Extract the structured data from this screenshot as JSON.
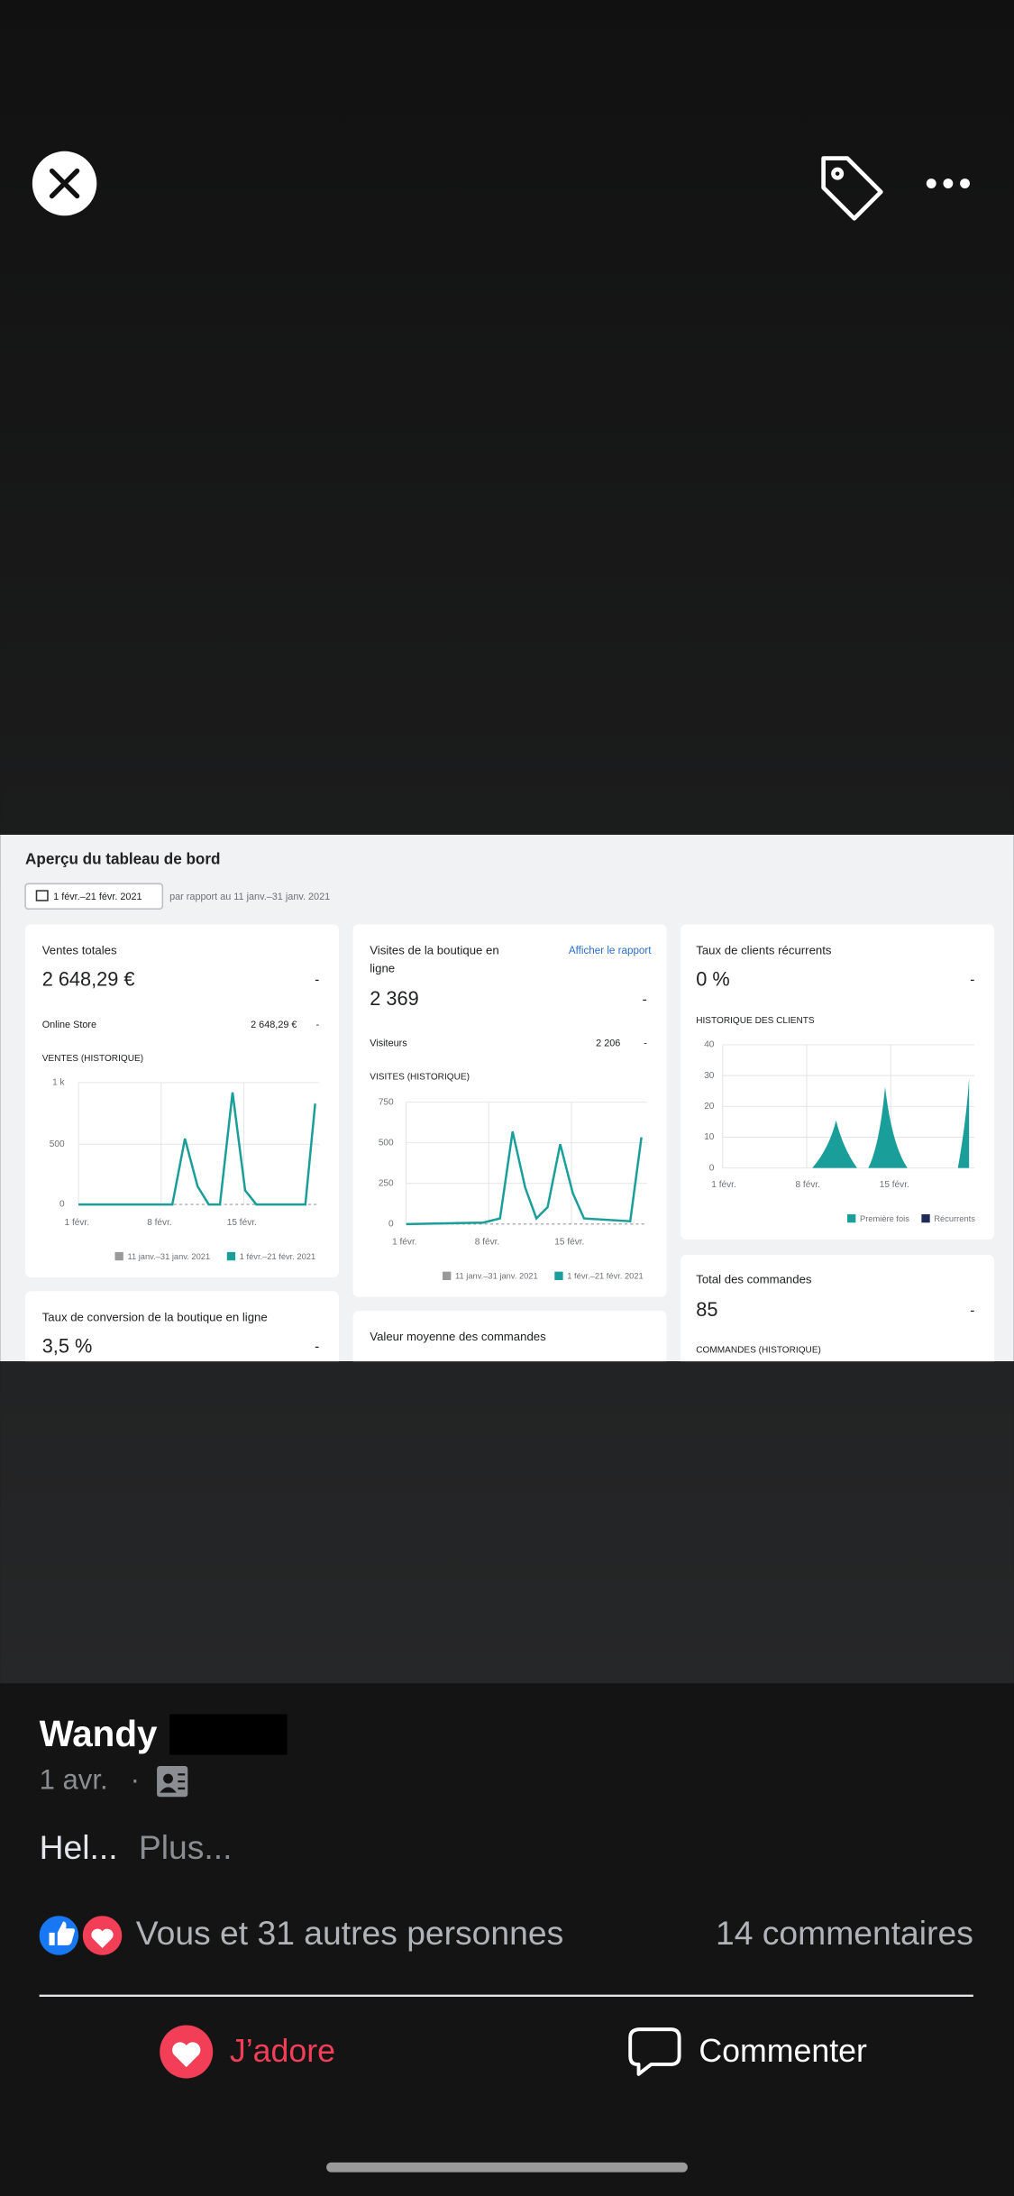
{
  "dashboard": {
    "title": "Aperçu du tableau de bord",
    "date_range": "1 févr.–21 févr. 2021",
    "comparison": "par rapport au 11 janv.–31 janv. 2021",
    "cards": [
      {
        "title": "Ventes totales",
        "value": "2 648,29 €",
        "change": "-",
        "breakdown_label": "Online Store",
        "breakdown_value": "2 648,29 €",
        "breakdown_change": "-",
        "chart_label": "VENTES (HISTORIQUE)",
        "yticks": [
          "1 k",
          "500",
          "0"
        ],
        "xticks": [
          "1 févr.",
          "8 févr.",
          "15 févr."
        ],
        "legend": [
          "11 janv.–31 janv. 2021",
          "1 févr.–21 févr. 2021"
        ]
      },
      {
        "title_lines": [
          "Visites de la boutique en",
          "ligne"
        ],
        "link": "Afficher le rapport",
        "value": "2 369",
        "change": "-",
        "breakdown_label": "Visiteurs",
        "breakdown_value": "2 206",
        "breakdown_change": "-",
        "chart_label": "VISITES (HISTORIQUE)",
        "yticks": [
          "750",
          "500",
          "250",
          "0"
        ],
        "xticks": [
          "1 févr.",
          "8 févr.",
          "15 févr."
        ],
        "legend": [
          "11 janv.–31 janv. 2021",
          "1 févr.–21 févr. 2021"
        ]
      },
      {
        "title": "Taux de clients récurrents",
        "value": "0 %",
        "change": "-",
        "chart_label": "HISTORIQUE DES CLIENTS",
        "yticks": [
          "40",
          "30",
          "20",
          "10",
          "0"
        ],
        "xticks": [
          "1 févr.",
          "8 févr.",
          "15 févr."
        ],
        "legend": [
          "Première fois",
          "Récurrents"
        ]
      },
      {
        "title": "Taux de conversion de la boutique en ligne",
        "value": "3,5 %",
        "change": "-"
      },
      {
        "title": "Valeur moyenne des commandes"
      },
      {
        "title": "Total des commandes",
        "value": "85",
        "change": "-",
        "chart_label": "COMMANDES (HISTORIQUE)"
      }
    ]
  },
  "post": {
    "author": "Wandy",
    "time": "1 avr.",
    "separator": "·",
    "text": "Hel...",
    "more": "Plus...",
    "reactions": "Vous et 31 autres personnes",
    "comments": "14 commentaires",
    "actions": [
      "J’adore",
      "Commenter"
    ]
  }
}
